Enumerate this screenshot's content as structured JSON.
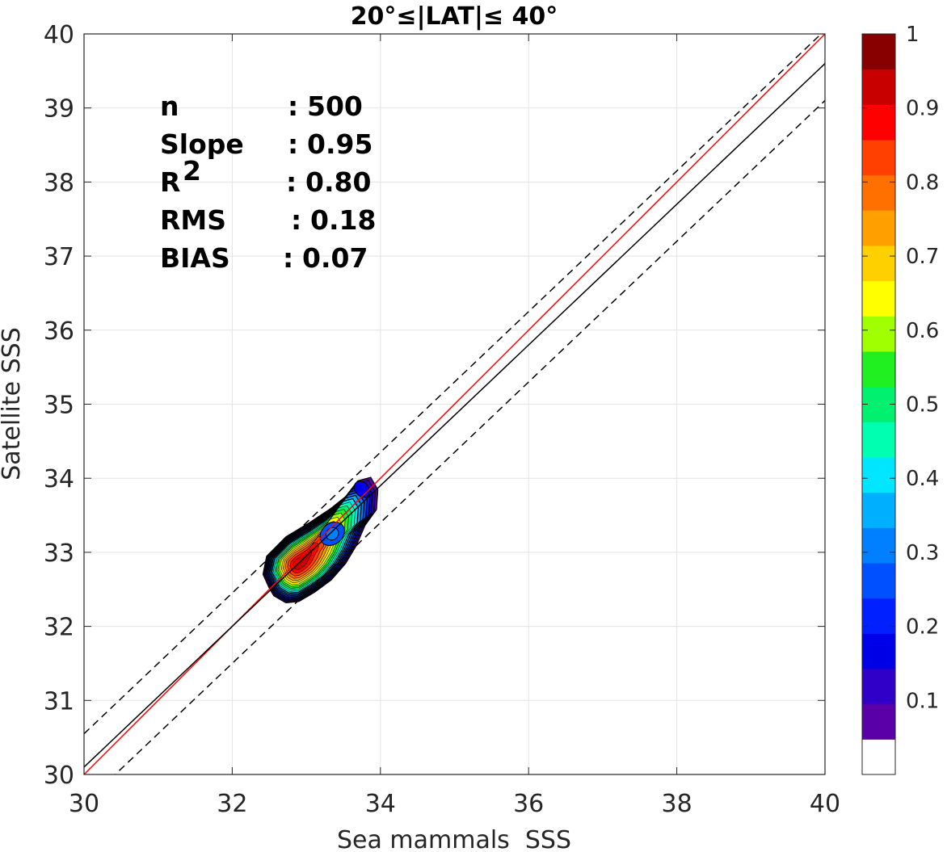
{
  "chart_data": {
    "type": "contour",
    "title": "20°≤|LAT|≤ 40°",
    "xlabel": "Sea mammals  SSS",
    "ylabel": "Satellite SSS",
    "xlim": [
      30,
      40
    ],
    "ylim": [
      30,
      40
    ],
    "xticks": [
      "30",
      "32",
      "34",
      "36",
      "38",
      "40"
    ],
    "yticks": [
      "30",
      "31",
      "32",
      "33",
      "34",
      "35",
      "36",
      "37",
      "38",
      "39",
      "40"
    ],
    "grid": true,
    "stats": [
      {
        "label": "n",
        "sep": ":",
        "value": "500"
      },
      {
        "label": "Slope",
        "sep": ":",
        "value": "0.95"
      },
      {
        "label": "R",
        "sup": "2",
        "sep": ":",
        "value": "0.80"
      },
      {
        "label": "RMS",
        "sep": ":",
        "value": "0.18"
      },
      {
        "label": "BIAS",
        "sep": ":",
        "value": "0.07"
      }
    ],
    "lines": [
      {
        "name": "1:1",
        "color": "#ff0000",
        "style": "solid",
        "slope": 1.0,
        "intercept": 0.0
      },
      {
        "name": "fit",
        "color": "#000000",
        "style": "solid",
        "slope": 0.95,
        "intercept": 1.6
      },
      {
        "name": "upper bound",
        "color": "#000000",
        "style": "dashed",
        "slope": 0.95,
        "intercept": 2.05
      },
      {
        "name": "lower bound",
        "color": "#000000",
        "style": "dashed",
        "slope": 0.95,
        "intercept": 1.1
      }
    ],
    "density": {
      "peak": [
        32.9,
        32.85
      ],
      "levels": [
        0.05,
        0.1,
        0.15,
        0.2,
        0.25,
        0.3,
        0.35,
        0.4,
        0.45,
        0.5,
        0.55,
        0.6,
        0.65,
        0.7,
        0.75,
        0.8,
        0.85,
        0.9,
        0.95
      ]
    },
    "colorbar": {
      "min": 0,
      "max": 1,
      "tick_values": [
        0.1,
        0.2,
        0.3,
        0.4,
        0.5,
        0.6,
        0.7,
        0.8,
        0.9,
        1
      ],
      "tick_labels": [
        "0.1",
        "0.2",
        "0.3",
        "0.4",
        "0.5",
        "0.6",
        "0.7",
        "0.8",
        "0.9",
        "1"
      ],
      "colors": [
        "#ffffff",
        "#5a00a8",
        "#3000c8",
        "#0000e6",
        "#0020ff",
        "#0050ff",
        "#0080ff",
        "#00b0ff",
        "#00e6ff",
        "#00ffb0",
        "#00f070",
        "#20f020",
        "#a0ff00",
        "#ffff00",
        "#ffd000",
        "#ffa000",
        "#ff7000",
        "#ff4000",
        "#ff0000",
        "#c80000",
        "#880000"
      ]
    }
  }
}
